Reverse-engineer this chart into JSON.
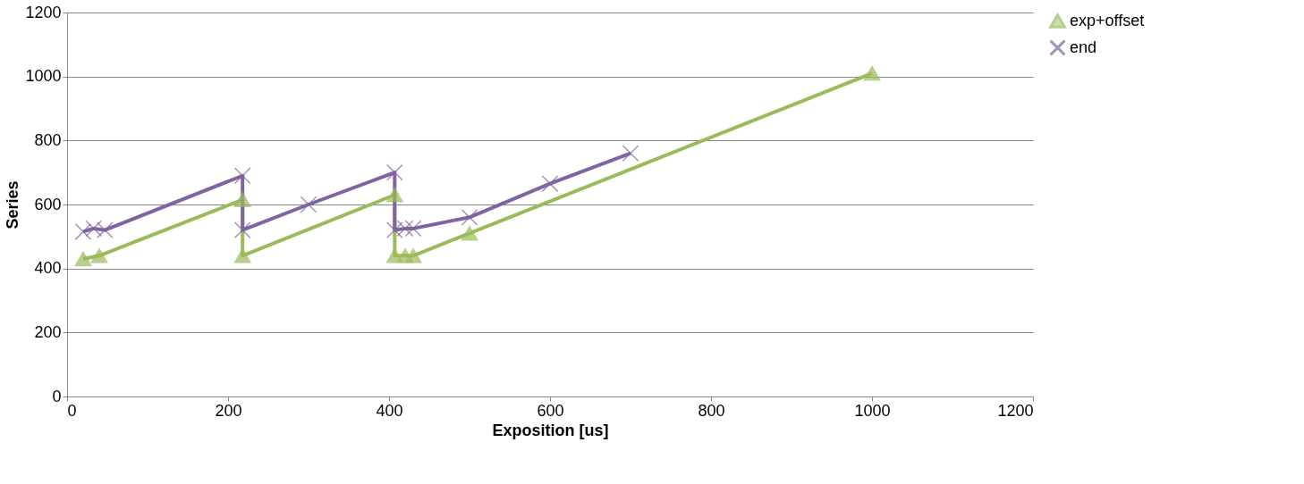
{
  "chart_data": {
    "type": "line",
    "xlabel": "Exposition [us]",
    "ylabel": "Series",
    "xlim": [
      0,
      1200
    ],
    "xticks": [
      0,
      200,
      400,
      600,
      800,
      1000,
      1200
    ],
    "ylim": [
      0,
      1200
    ],
    "yticks": [
      0,
      200,
      400,
      600,
      800,
      1000,
      1200
    ],
    "grid": "y",
    "legend": "right",
    "line_style": "solid",
    "series": [
      {
        "name": "exp+offset",
        "color": "#9bbb59",
        "marker": "triangle",
        "x": [
          20,
          40,
          218,
          218,
          407,
          407,
          420,
          430,
          500,
          1000
        ],
        "values": [
          430,
          440,
          615,
          440,
          630,
          440,
          440,
          440,
          510,
          1010
        ]
      },
      {
        "name": "end",
        "color": "#8064a2",
        "marker": "cross",
        "x": [
          20,
          33,
          47,
          218,
          218,
          300,
          407,
          407,
          420,
          430,
          500,
          600,
          700
        ],
        "values": [
          515,
          525,
          520,
          690,
          520,
          600,
          700,
          520,
          525,
          525,
          560,
          665,
          760
        ]
      }
    ]
  }
}
